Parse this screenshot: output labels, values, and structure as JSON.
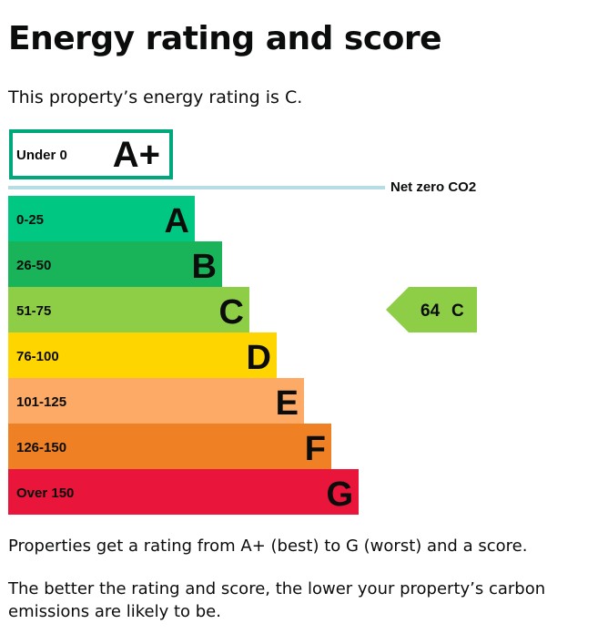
{
  "page": {
    "title": "Energy rating and score",
    "intro": "This property’s energy rating is C.",
    "note_1": "Properties get a rating from A+ (best) to G (worst) and a score.",
    "note_2": "The better the rating and score, the lower your property’s carbon emissions are likely to be."
  },
  "chart_data": {
    "type": "bar",
    "bands": [
      {
        "range": "Under 0",
        "letter": "A+",
        "color": "#ffffff",
        "border": "#00a77a"
      },
      {
        "range": "0-25",
        "letter": "A",
        "color": "#00c781"
      },
      {
        "range": "26-50",
        "letter": "B",
        "color": "#19b459"
      },
      {
        "range": "51-75",
        "letter": "C",
        "color": "#8dce46"
      },
      {
        "range": "76-100",
        "letter": "D",
        "color": "#ffd500"
      },
      {
        "range": "101-125",
        "letter": "E",
        "color": "#fcaa65"
      },
      {
        "range": "126-150",
        "letter": "F",
        "color": "#ef8023"
      },
      {
        "range": "Over 150",
        "letter": "G",
        "color": "#e9153b"
      }
    ],
    "net_zero_label": "Net zero CO2",
    "net_zero_color": "#b6dde6",
    "current": {
      "score": "64",
      "letter": "C",
      "band": "C",
      "color": "#8dce46"
    }
  }
}
